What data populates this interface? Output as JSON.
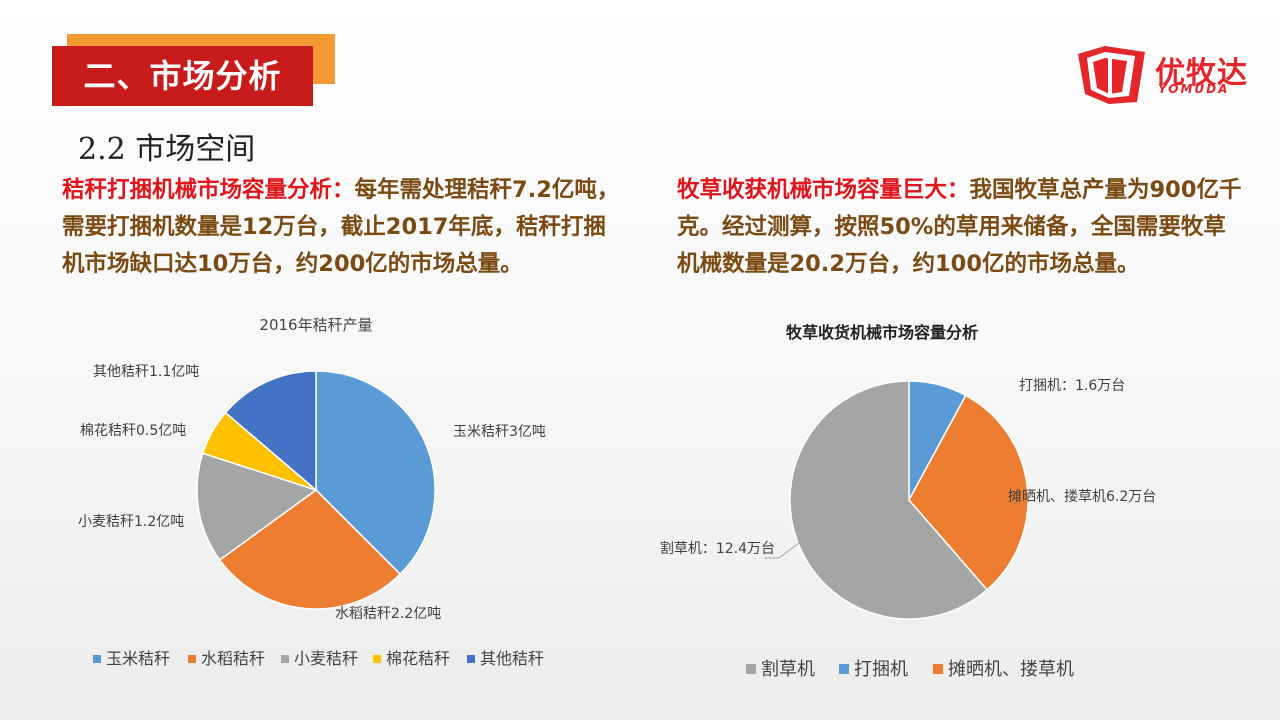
{
  "header": {
    "section_title": "二、市场分析",
    "subtitle": "2.2 市场空间"
  },
  "logo": {
    "name": "优牧达",
    "sub": "YOMUDA",
    "brand_color": "#e4262b"
  },
  "left_paragraph": {
    "highlight": "秸秆打捆机械市场容量分析：",
    "body": "每年需处理秸秆7.2亿吨，需要打捆机数量是12万台，截止2017年底，秸秆打捆机市场缺口达10万台，约200亿的市场总量。"
  },
  "right_paragraph": {
    "highlight": "牧草收获机械市场容量巨大：",
    "body": "我国牧草总产量为900亿千克。经过测算，按照50%的草用来储备，全国需要牧草机械数量是20.2万台，约100亿的市场总量。"
  },
  "chart_data": [
    {
      "type": "pie",
      "title": "2016年秸秆产量",
      "unit": "亿吨",
      "legend_position": "bottom",
      "slices": [
        {
          "name": "玉米秸秆",
          "value": 3,
          "label": "玉米秸秆3亿吨",
          "color": "#5b9bd5"
        },
        {
          "name": "水稻秸秆",
          "value": 2.2,
          "label": "水稻秸秆2.2亿吨",
          "color": "#ed7d31"
        },
        {
          "name": "小麦秸秆",
          "value": 1.2,
          "label": "小麦秸秆1.2亿吨",
          "color": "#a5a5a5"
        },
        {
          "name": "棉花秸秆",
          "value": 0.5,
          "label": "棉花秸秆0.5亿吨",
          "color": "#ffc000"
        },
        {
          "name": "其他秸秆",
          "value": 1.1,
          "label": "其他秸秆1.1亿吨",
          "color": "#4472c4"
        }
      ]
    },
    {
      "type": "pie",
      "title": "牧草收货机械市场容量分析",
      "unit": "万台",
      "legend_position": "bottom",
      "slices": [
        {
          "name": "打捆机",
          "value": 1.6,
          "label": "打捆机：1.6万台",
          "color": "#5b9bd5"
        },
        {
          "name": "摊晒机、搂草机",
          "value": 6.2,
          "label": "摊晒机、搂草机6.2万台",
          "color": "#ed7d31"
        },
        {
          "name": "割草机",
          "value": 12.4,
          "label": "割草机：12.4万台",
          "color": "#a5a5a5"
        }
      ],
      "legend_order": [
        "割草机",
        "打捆机",
        "摊晒机、搂草机"
      ]
    }
  ]
}
